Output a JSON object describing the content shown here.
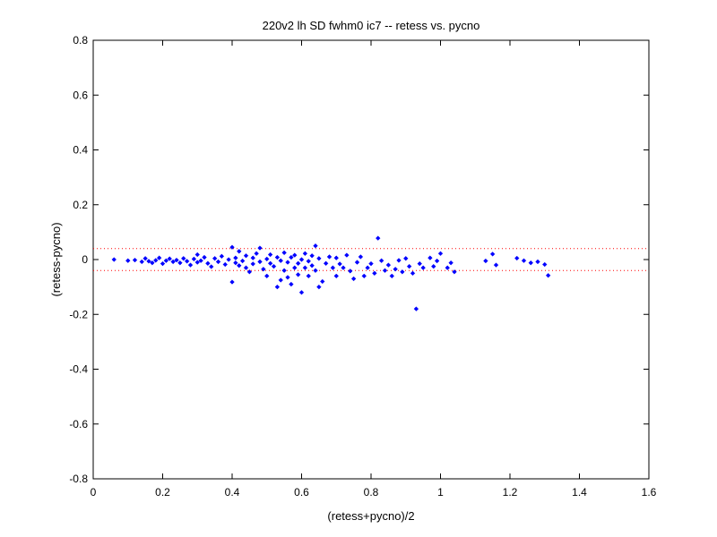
{
  "chart_data": {
    "type": "scatter",
    "title": "220v2 lh SD fwhm0 ic7 -- retess vs. pycno",
    "xlabel": "(retess+pycno)/2",
    "ylabel": "(retess-pycno)",
    "xlim": [
      0,
      1.6
    ],
    "ylim": [
      -0.8,
      0.8
    ],
    "xticks": [
      0,
      0.2,
      0.4,
      0.6,
      0.8,
      1,
      1.2,
      1.4,
      1.6
    ],
    "yticks": [
      -0.8,
      -0.6,
      -0.4,
      -0.2,
      0,
      0.2,
      0.4,
      0.6,
      0.8
    ],
    "xtick_labels": [
      "0",
      "0.2",
      "0.4",
      "0.6",
      "0.8",
      "1",
      "1.2",
      "1.4",
      "1.6"
    ],
    "ytick_labels": [
      "-0.8",
      "-0.6",
      "-0.4",
      "-0.2",
      "0",
      "0.2",
      "0.4",
      "0.6",
      "0.8"
    ],
    "reference_lines": [
      0.04,
      -0.04
    ],
    "colors": {
      "points": "#0000ff",
      "reference_lines": "#ff0000",
      "axes": "#000000"
    },
    "grid": false,
    "legend": "none",
    "points": [
      [
        0.06,
        0.0
      ],
      [
        0.1,
        -0.004
      ],
      [
        0.12,
        -0.002
      ],
      [
        0.14,
        -0.008
      ],
      [
        0.15,
        0.004
      ],
      [
        0.16,
        -0.006
      ],
      [
        0.17,
        -0.012
      ],
      [
        0.18,
        -0.003
      ],
      [
        0.19,
        0.006
      ],
      [
        0.2,
        -0.015
      ],
      [
        0.21,
        -0.004
      ],
      [
        0.22,
        0.003
      ],
      [
        0.23,
        -0.008
      ],
      [
        0.24,
        -0.002
      ],
      [
        0.25,
        -0.012
      ],
      [
        0.26,
        0.004
      ],
      [
        0.27,
        -0.006
      ],
      [
        0.28,
        -0.02
      ],
      [
        0.29,
        0.002
      ],
      [
        0.3,
        0.018
      ],
      [
        0.3,
        -0.01
      ],
      [
        0.31,
        -0.004
      ],
      [
        0.32,
        0.008
      ],
      [
        0.33,
        -0.014
      ],
      [
        0.34,
        -0.026
      ],
      [
        0.35,
        0.004
      ],
      [
        0.36,
        -0.008
      ],
      [
        0.37,
        0.012
      ],
      [
        0.38,
        -0.018
      ],
      [
        0.39,
        0.0
      ],
      [
        0.4,
        0.045
      ],
      [
        0.4,
        -0.082
      ],
      [
        0.41,
        -0.012
      ],
      [
        0.41,
        0.006
      ],
      [
        0.42,
        0.03
      ],
      [
        0.42,
        -0.022
      ],
      [
        0.43,
        -0.005
      ],
      [
        0.44,
        0.014
      ],
      [
        0.44,
        -0.03
      ],
      [
        0.45,
        -0.045
      ],
      [
        0.46,
        0.006
      ],
      [
        0.46,
        -0.016
      ],
      [
        0.47,
        0.022
      ],
      [
        0.48,
        0.042
      ],
      [
        0.48,
        -0.008
      ],
      [
        0.49,
        -0.035
      ],
      [
        0.5,
        0.002
      ],
      [
        0.5,
        -0.06
      ],
      [
        0.51,
        0.018
      ],
      [
        0.51,
        -0.014
      ],
      [
        0.52,
        -0.025
      ],
      [
        0.53,
        -0.1
      ],
      [
        0.53,
        0.008
      ],
      [
        0.54,
        -0.075
      ],
      [
        0.54,
        -0.004
      ],
      [
        0.55,
        0.025
      ],
      [
        0.55,
        -0.04
      ],
      [
        0.56,
        -0.065
      ],
      [
        0.56,
        -0.01
      ],
      [
        0.57,
        0.008
      ],
      [
        0.57,
        -0.09
      ],
      [
        0.58,
        -0.03
      ],
      [
        0.58,
        0.016
      ],
      [
        0.59,
        -0.055
      ],
      [
        0.59,
        -0.014
      ],
      [
        0.6,
        0.0
      ],
      [
        0.6,
        -0.12
      ],
      [
        0.61,
        0.022
      ],
      [
        0.61,
        -0.03
      ],
      [
        0.62,
        -0.06
      ],
      [
        0.62,
        -0.006
      ],
      [
        0.63,
        0.014
      ],
      [
        0.63,
        -0.022
      ],
      [
        0.64,
        0.05
      ],
      [
        0.64,
        -0.04
      ],
      [
        0.65,
        -0.1
      ],
      [
        0.65,
        0.004
      ],
      [
        0.66,
        -0.08
      ],
      [
        0.67,
        -0.014
      ],
      [
        0.68,
        0.01
      ],
      [
        0.69,
        -0.03
      ],
      [
        0.7,
        -0.06
      ],
      [
        0.7,
        0.006
      ],
      [
        0.71,
        -0.016
      ],
      [
        0.72,
        -0.03
      ],
      [
        0.73,
        0.016
      ],
      [
        0.74,
        -0.042
      ],
      [
        0.75,
        -0.07
      ],
      [
        0.76,
        -0.01
      ],
      [
        0.77,
        0.01
      ],
      [
        0.78,
        -0.06
      ],
      [
        0.79,
        -0.03
      ],
      [
        0.8,
        -0.015
      ],
      [
        0.81,
        -0.05
      ],
      [
        0.82,
        0.078
      ],
      [
        0.83,
        -0.004
      ],
      [
        0.84,
        -0.04
      ],
      [
        0.85,
        -0.02
      ],
      [
        0.86,
        -0.06
      ],
      [
        0.87,
        -0.035
      ],
      [
        0.88,
        -0.003
      ],
      [
        0.89,
        -0.045
      ],
      [
        0.9,
        0.004
      ],
      [
        0.91,
        -0.025
      ],
      [
        0.92,
        -0.05
      ],
      [
        0.93,
        -0.18
      ],
      [
        0.94,
        -0.015
      ],
      [
        0.95,
        -0.03
      ],
      [
        0.97,
        0.006
      ],
      [
        0.98,
        -0.025
      ],
      [
        0.99,
        -0.005
      ],
      [
        1.0,
        0.022
      ],
      [
        1.02,
        -0.03
      ],
      [
        1.03,
        -0.012
      ],
      [
        1.04,
        -0.045
      ],
      [
        1.13,
        -0.005
      ],
      [
        1.15,
        0.02
      ],
      [
        1.16,
        -0.02
      ],
      [
        1.22,
        0.005
      ],
      [
        1.24,
        -0.004
      ],
      [
        1.26,
        -0.012
      ],
      [
        1.28,
        -0.008
      ],
      [
        1.3,
        -0.018
      ],
      [
        1.31,
        -0.058
      ]
    ]
  }
}
